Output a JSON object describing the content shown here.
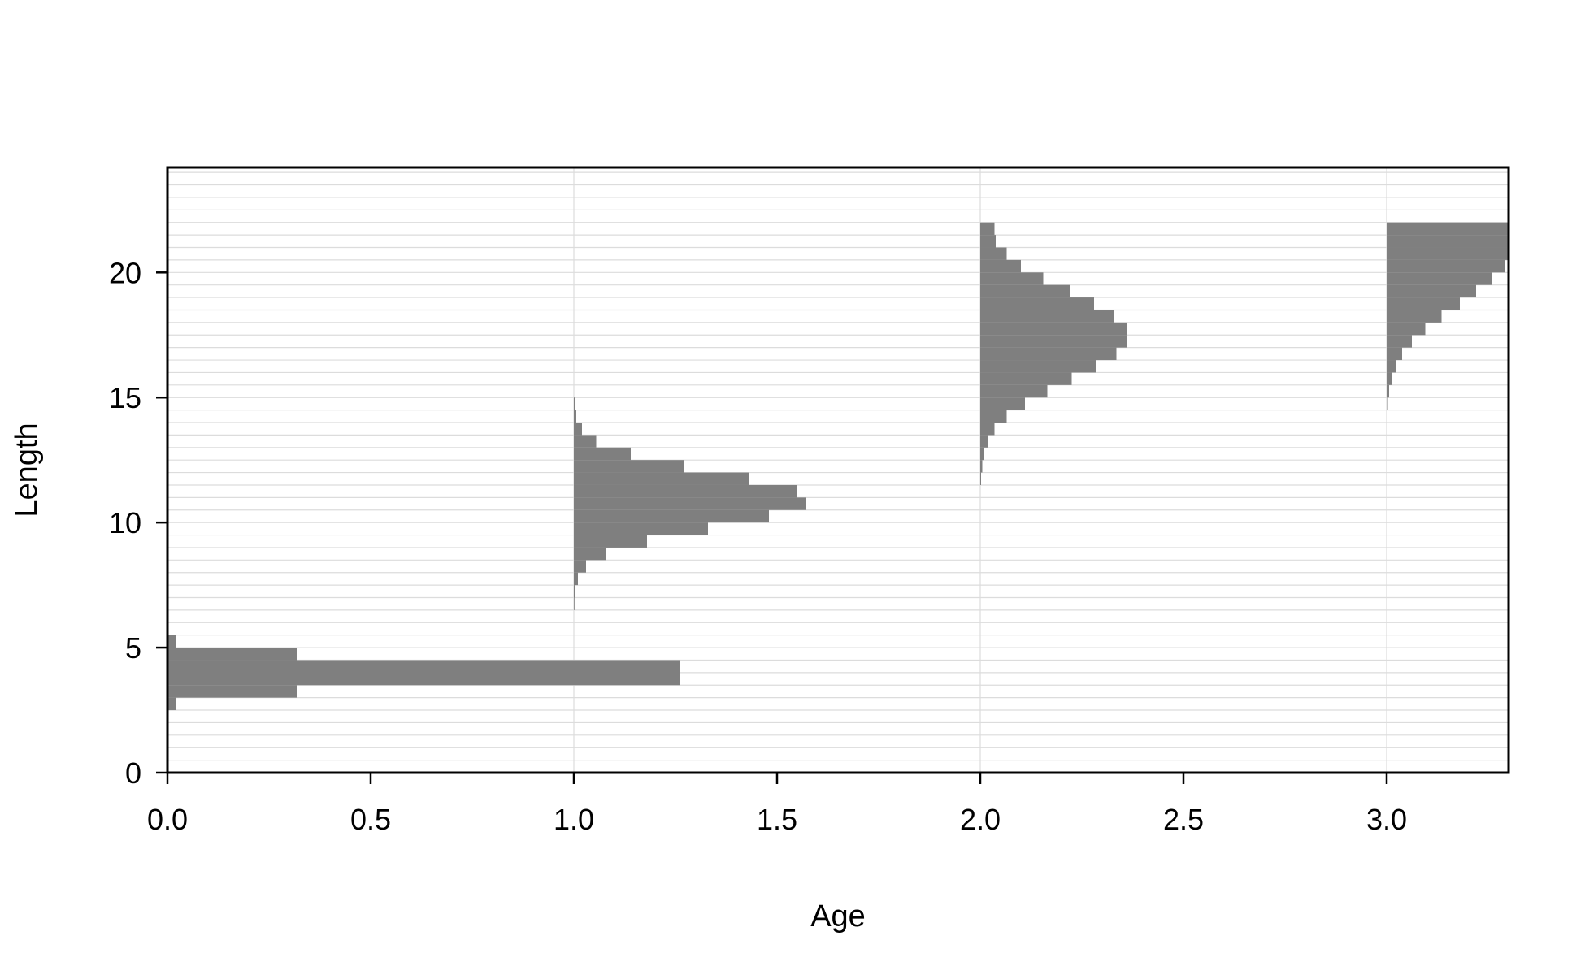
{
  "chart_data": {
    "type": "bar",
    "orientation": "horizontal",
    "title": "",
    "xlabel": "Age",
    "ylabel": "Length",
    "xlim": [
      0,
      3.3
    ],
    "ylim": [
      0,
      24.2
    ],
    "xticks": [
      0.0,
      0.5,
      1.0,
      1.5,
      2.0,
      2.5,
      3.0
    ],
    "xtick_labels": [
      "0.0",
      "0.5",
      "1.0",
      "1.5",
      "2.0",
      "2.5",
      "3.0"
    ],
    "yticks": [
      0,
      5,
      10,
      15,
      20
    ],
    "ytick_labels": [
      "0",
      "5",
      "10",
      "15",
      "20"
    ],
    "bin_width": 0.5,
    "grid": "vertical lines at ages 1, 2, 3 and horizontal lines every 0.5 length units",
    "legend": "none",
    "colors": {
      "bar": "#7f7f7f",
      "grid": "#dcdcdc",
      "frame": "#000000"
    },
    "series": [
      {
        "age": 0,
        "bins": [
          {
            "from": 2.5,
            "to": 3.0,
            "value": 0.02
          },
          {
            "from": 3.0,
            "to": 3.5,
            "value": 0.32
          },
          {
            "from": 3.5,
            "to": 4.5,
            "value": 1.26
          },
          {
            "from": 4.5,
            "to": 5.0,
            "value": 0.32
          },
          {
            "from": 5.0,
            "to": 5.5,
            "value": 0.02
          }
        ]
      },
      {
        "age": 1,
        "bins": [
          {
            "from": 6.5,
            "to": 7.0,
            "value": 0.001
          },
          {
            "from": 7.0,
            "to": 7.5,
            "value": 0.004
          },
          {
            "from": 7.5,
            "to": 8.0,
            "value": 0.01
          },
          {
            "from": 8.0,
            "to": 8.5,
            "value": 0.03
          },
          {
            "from": 8.5,
            "to": 9.0,
            "value": 0.08
          },
          {
            "from": 9.0,
            "to": 9.5,
            "value": 0.18
          },
          {
            "from": 9.5,
            "to": 10.0,
            "value": 0.33
          },
          {
            "from": 10.0,
            "to": 10.5,
            "value": 0.48
          },
          {
            "from": 10.5,
            "to": 11.0,
            "value": 0.57
          },
          {
            "from": 11.0,
            "to": 11.5,
            "value": 0.55
          },
          {
            "from": 11.5,
            "to": 12.0,
            "value": 0.43
          },
          {
            "from": 12.0,
            "to": 12.5,
            "value": 0.27
          },
          {
            "from": 12.5,
            "to": 13.0,
            "value": 0.14
          },
          {
            "from": 13.0,
            "to": 13.5,
            "value": 0.055
          },
          {
            "from": 13.5,
            "to": 14.0,
            "value": 0.02
          },
          {
            "from": 14.0,
            "to": 14.5,
            "value": 0.006
          },
          {
            "from": 14.5,
            "to": 15.0,
            "value": 0.002
          }
        ]
      },
      {
        "age": 2,
        "bins": [
          {
            "from": 11.5,
            "to": 12.0,
            "value": 0.002
          },
          {
            "from": 12.0,
            "to": 12.5,
            "value": 0.005
          },
          {
            "from": 12.5,
            "to": 13.0,
            "value": 0.01
          },
          {
            "from": 13.0,
            "to": 13.5,
            "value": 0.02
          },
          {
            "from": 13.5,
            "to": 14.0,
            "value": 0.035
          },
          {
            "from": 14.0,
            "to": 14.5,
            "value": 0.065
          },
          {
            "from": 14.5,
            "to": 15.0,
            "value": 0.11
          },
          {
            "from": 15.0,
            "to": 15.5,
            "value": 0.165
          },
          {
            "from": 15.5,
            "to": 16.0,
            "value": 0.225
          },
          {
            "from": 16.0,
            "to": 16.5,
            "value": 0.285
          },
          {
            "from": 16.5,
            "to": 17.0,
            "value": 0.335
          },
          {
            "from": 17.0,
            "to": 17.5,
            "value": 0.36
          },
          {
            "from": 17.5,
            "to": 18.0,
            "value": 0.36
          },
          {
            "from": 18.0,
            "to": 18.5,
            "value": 0.33
          },
          {
            "from": 18.5,
            "to": 19.0,
            "value": 0.28
          },
          {
            "from": 19.0,
            "to": 19.5,
            "value": 0.22
          },
          {
            "from": 19.5,
            "to": 20.0,
            "value": 0.155
          },
          {
            "from": 20.0,
            "to": 20.5,
            "value": 0.1
          },
          {
            "from": 20.5,
            "to": 21.0,
            "value": 0.065
          },
          {
            "from": 21.0,
            "to": 21.5,
            "value": 0.038
          },
          {
            "from": 21.5,
            "to": 22.0,
            "value": 0.035
          }
        ]
      },
      {
        "age": 3,
        "bins": [
          {
            "from": 14.0,
            "to": 14.5,
            "value": 0.001
          },
          {
            "from": 14.5,
            "to": 15.0,
            "value": 0.003
          },
          {
            "from": 15.0,
            "to": 15.5,
            "value": 0.006
          },
          {
            "from": 15.5,
            "to": 16.0,
            "value": 0.012
          },
          {
            "from": 16.0,
            "to": 16.5,
            "value": 0.022
          },
          {
            "from": 16.5,
            "to": 17.0,
            "value": 0.038
          },
          {
            "from": 17.0,
            "to": 17.5,
            "value": 0.062
          },
          {
            "from": 17.5,
            "to": 18.0,
            "value": 0.095
          },
          {
            "from": 18.0,
            "to": 18.5,
            "value": 0.135
          },
          {
            "from": 18.5,
            "to": 19.0,
            "value": 0.18
          },
          {
            "from": 19.0,
            "to": 19.5,
            "value": 0.22
          },
          {
            "from": 19.5,
            "to": 20.0,
            "value": 0.26
          },
          {
            "from": 20.0,
            "to": 20.5,
            "value": 0.29
          },
          {
            "from": 20.5,
            "to": 21.0,
            "value": 0.31
          },
          {
            "from": 21.0,
            "to": 21.5,
            "value": 0.3
          },
          {
            "from": 21.5,
            "to": 22.0,
            "value": 0.3
          }
        ]
      }
    ]
  }
}
